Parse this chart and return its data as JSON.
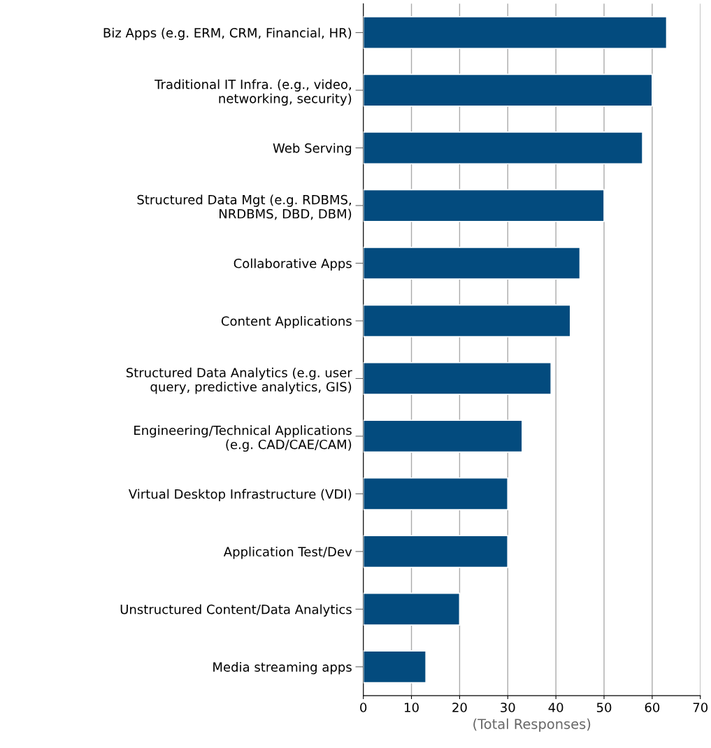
{
  "chart_data": {
    "type": "bar",
    "orientation": "horizontal",
    "xlabel": "(Total Responses)",
    "categories": [
      "Biz Apps (e.g. ERM, CRM, Financial, HR)",
      "Traditional IT Infra. (e.g., video,\nnetworking, security)",
      "Web Serving",
      "Structured Data Mgt (e.g. RDBMS,\nNRDBMS, DBD, DBM)",
      "Collaborative Apps",
      "Content Applications",
      "Structured Data Analytics (e.g. user\nquery, predictive analytics, GIS)",
      "Engineering/Technical Applications\n(e.g. CAD/CAE/CAM)",
      "Virtual Desktop Infrastructure (VDI)",
      "Application Test/Dev",
      "Unstructured Content/Data Analytics",
      "Media streaming apps"
    ],
    "values": [
      63,
      60,
      58,
      50,
      45,
      43,
      39,
      33,
      30,
      30,
      20,
      13
    ],
    "color": "#034b7e",
    "xlim": [
      0,
      70
    ],
    "xticks": [
      0,
      10,
      20,
      30,
      40,
      50,
      60,
      70
    ],
    "grid": "x"
  }
}
